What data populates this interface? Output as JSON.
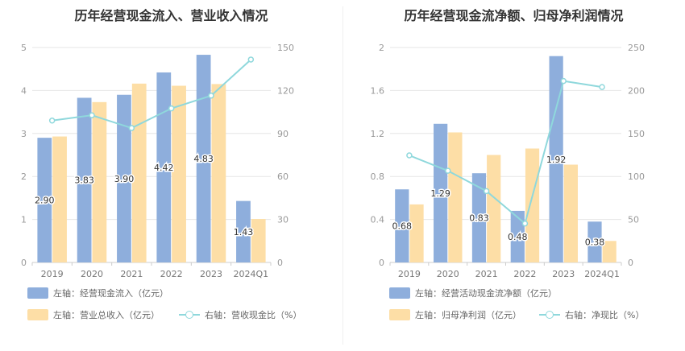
{
  "chart_data": [
    {
      "type": "bar",
      "title": "历年经营现金流入、营业收入情况",
      "categories": [
        "2019",
        "2020",
        "2021",
        "2022",
        "2023",
        "2024Q1"
      ],
      "left_axis": {
        "ylim": [
          0,
          5
        ],
        "ticks": [
          "0",
          "1",
          "2",
          "3",
          "4",
          "5"
        ]
      },
      "right_axis": {
        "ylim": [
          0,
          150
        ],
        "ticks": [
          "0",
          "30",
          "60",
          "90",
          "120",
          "150"
        ]
      },
      "series": [
        {
          "name": "左轴：经营现金流入（亿元）",
          "kind": "bar",
          "axis": "left",
          "color": "#8eaedc",
          "values": [
            2.9,
            3.83,
            3.9,
            4.42,
            4.83,
            1.43
          ],
          "labels": [
            "2.90",
            "3.83",
            "3.90",
            "4.42",
            "4.83",
            "1.43"
          ]
        },
        {
          "name": "左轴：营业总收入（亿元）",
          "kind": "bar",
          "axis": "left",
          "color": "#fddea6",
          "values": [
            2.93,
            3.73,
            4.16,
            4.11,
            4.15,
            1.01
          ]
        },
        {
          "name": "右轴：营收现金比（%）",
          "kind": "line",
          "axis": "right",
          "color": "#8fd8dc",
          "values": [
            99.0,
            102.7,
            93.8,
            107.5,
            116.4,
            141.6
          ]
        }
      ],
      "legend_placement": "bottom"
    },
    {
      "type": "bar",
      "title": "历年经营现金流净额、归母净利润情况",
      "categories": [
        "2019",
        "2020",
        "2021",
        "2022",
        "2023",
        "2024Q1"
      ],
      "left_axis": {
        "ylim": [
          0,
          2
        ],
        "ticks": [
          "0",
          "0.4",
          "0.8",
          "1.2",
          "1.6",
          "2"
        ]
      },
      "right_axis": {
        "ylim": [
          0,
          250
        ],
        "ticks": [
          "0",
          "50",
          "100",
          "150",
          "200",
          "250"
        ]
      },
      "series": [
        {
          "name": "左轴：经营活动现金流净额（亿元）",
          "kind": "bar",
          "axis": "left",
          "color": "#8eaedc",
          "values": [
            0.68,
            1.29,
            0.83,
            0.48,
            1.92,
            0.38
          ],
          "labels": [
            "0.68",
            "1.29",
            "0.83",
            "0.48",
            "1.92",
            "0.38"
          ]
        },
        {
          "name": "左轴：归母净利润（亿元）",
          "kind": "bar",
          "axis": "left",
          "color": "#fddea6",
          "values": [
            0.54,
            1.21,
            1.0,
            1.06,
            0.91,
            0.2
          ]
        },
        {
          "name": "右轴：净现比（%）",
          "kind": "line",
          "axis": "right",
          "color": "#8fd8dc",
          "values": [
            124.5,
            106.6,
            83.0,
            45.3,
            211.0,
            204.0
          ]
        }
      ],
      "legend_placement": "bottom"
    }
  ]
}
